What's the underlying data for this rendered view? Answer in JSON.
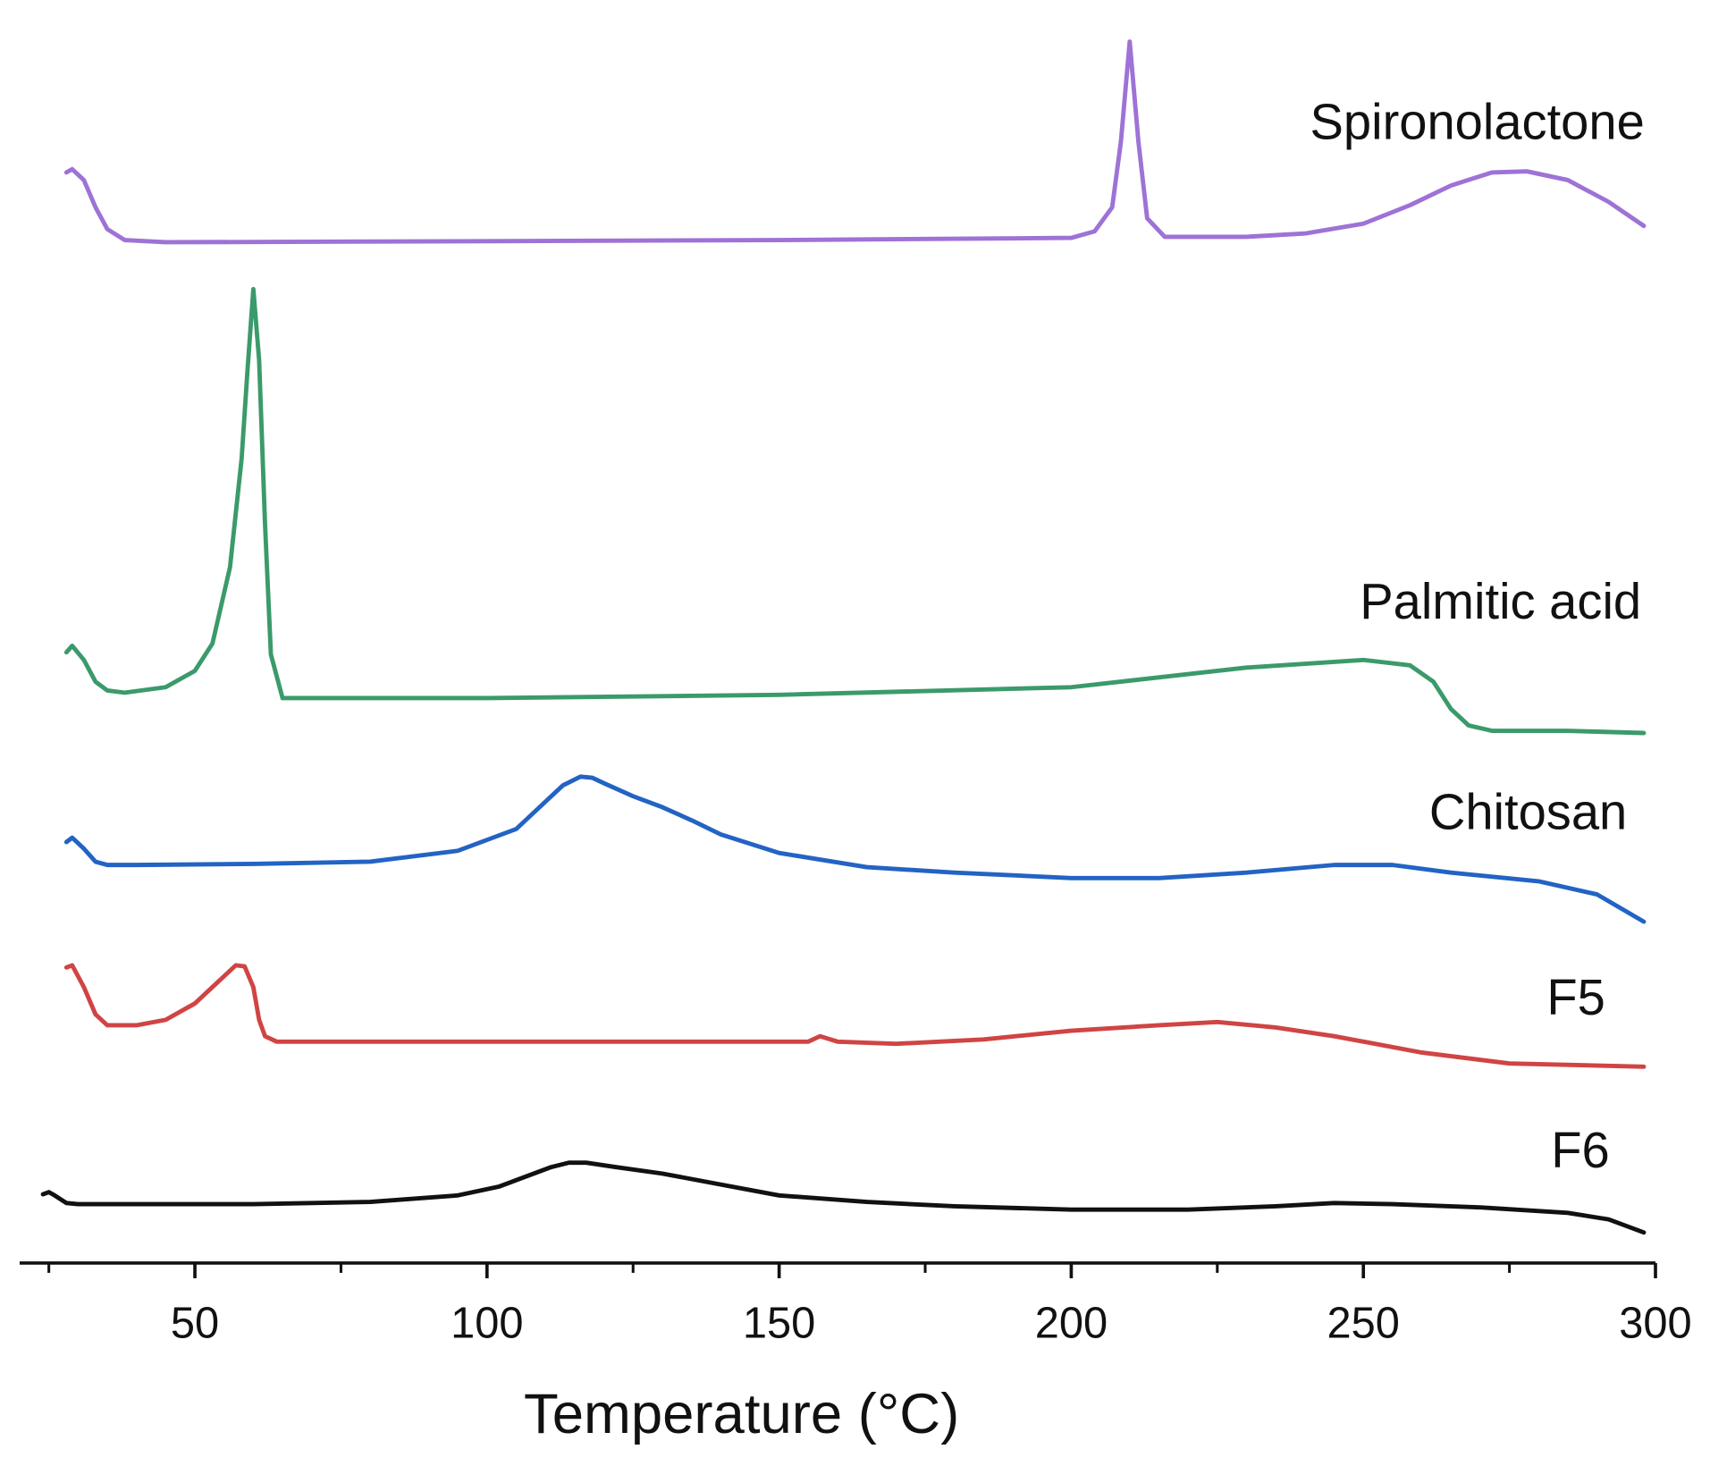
{
  "chart_data": {
    "type": "line",
    "x_label": "Temperature (°C)",
    "xlim": [
      20,
      300
    ],
    "xticks": [
      50,
      100,
      150,
      200,
      250,
      300
    ],
    "xminor_ticks": [
      25,
      75,
      125,
      175,
      225,
      275
    ],
    "ylim": [
      0,
      1158
    ],
    "series": [
      {
        "name": "Spironolactone",
        "color": "#9e72d6",
        "x": [
          28,
          29,
          31,
          33,
          35,
          38,
          45,
          100,
          150,
          200,
          204,
          207,
          208.5,
          210,
          211.5,
          213,
          216,
          230,
          240,
          250,
          258,
          265,
          272,
          278,
          285,
          292,
          298
        ],
        "values": [
          1000,
          1003,
          993,
          968,
          948,
          938,
          936,
          937,
          938,
          940,
          946,
          968,
          1028,
          1120,
          1028,
          958,
          941,
          941,
          944,
          953,
          970,
          988,
          1000,
          1001,
          993,
          973,
          951
        ]
      },
      {
        "name": "Palmitic acid",
        "color": "#3b9a6b",
        "x": [
          28,
          29,
          31,
          33,
          35,
          38,
          45,
          50,
          53,
          56,
          58,
          59,
          60,
          61,
          62,
          63,
          65,
          100,
          150,
          200,
          230,
          250,
          258,
          262,
          265,
          268,
          272,
          285,
          298
        ],
        "values": [
          560,
          566,
          553,
          533,
          525,
          523,
          528,
          543,
          568,
          638,
          738,
          818,
          893,
          828,
          678,
          558,
          518,
          518,
          521,
          528,
          546,
          553,
          548,
          533,
          508,
          493,
          488,
          488,
          486
        ]
      },
      {
        "name": "Chitosan",
        "color": "#2363c4",
        "x": [
          28,
          29,
          31,
          33,
          35,
          40,
          60,
          80,
          95,
          105,
          110,
          113,
          116,
          118,
          120,
          125,
          130,
          135,
          140,
          150,
          165,
          180,
          200,
          215,
          230,
          245,
          255,
          265,
          280,
          290,
          298
        ],
        "values": [
          386,
          390,
          380,
          368,
          365,
          365,
          366,
          368,
          378,
          398,
          423,
          438,
          446,
          445,
          440,
          428,
          418,
          406,
          393,
          376,
          363,
          358,
          353,
          353,
          358,
          365,
          365,
          358,
          350,
          338,
          313
        ]
      },
      {
        "name": "F5",
        "color": "#d04444",
        "x": [
          28,
          29,
          31,
          33,
          35,
          40,
          45,
          50,
          54,
          57,
          58.5,
          60,
          61,
          62,
          64,
          100,
          145,
          155,
          157,
          160,
          170,
          185,
          200,
          215,
          225,
          235,
          245,
          260,
          275,
          298
        ],
        "values": [
          271,
          273,
          253,
          228,
          218,
          218,
          223,
          238,
          258,
          273,
          272,
          253,
          223,
          208,
          203,
          203,
          203,
          203,
          208,
          203,
          201,
          205,
          213,
          218,
          221,
          216,
          208,
          193,
          183,
          180
        ]
      },
      {
        "name": "F6",
        "color": "#111111",
        "x": [
          24,
          25,
          26,
          28,
          30,
          35,
          60,
          80,
          95,
          102,
          107,
          111,
          114,
          117,
          122,
          130,
          140,
          150,
          165,
          180,
          200,
          220,
          235,
          245,
          255,
          270,
          285,
          292,
          298
        ],
        "values": [
          63,
          65,
          62,
          55,
          54,
          54,
          54,
          56,
          62,
          70,
          80,
          88,
          92,
          92,
          88,
          82,
          72,
          62,
          56,
          52,
          49,
          49,
          52,
          55,
          54,
          51,
          46,
          40,
          28
        ]
      }
    ]
  }
}
